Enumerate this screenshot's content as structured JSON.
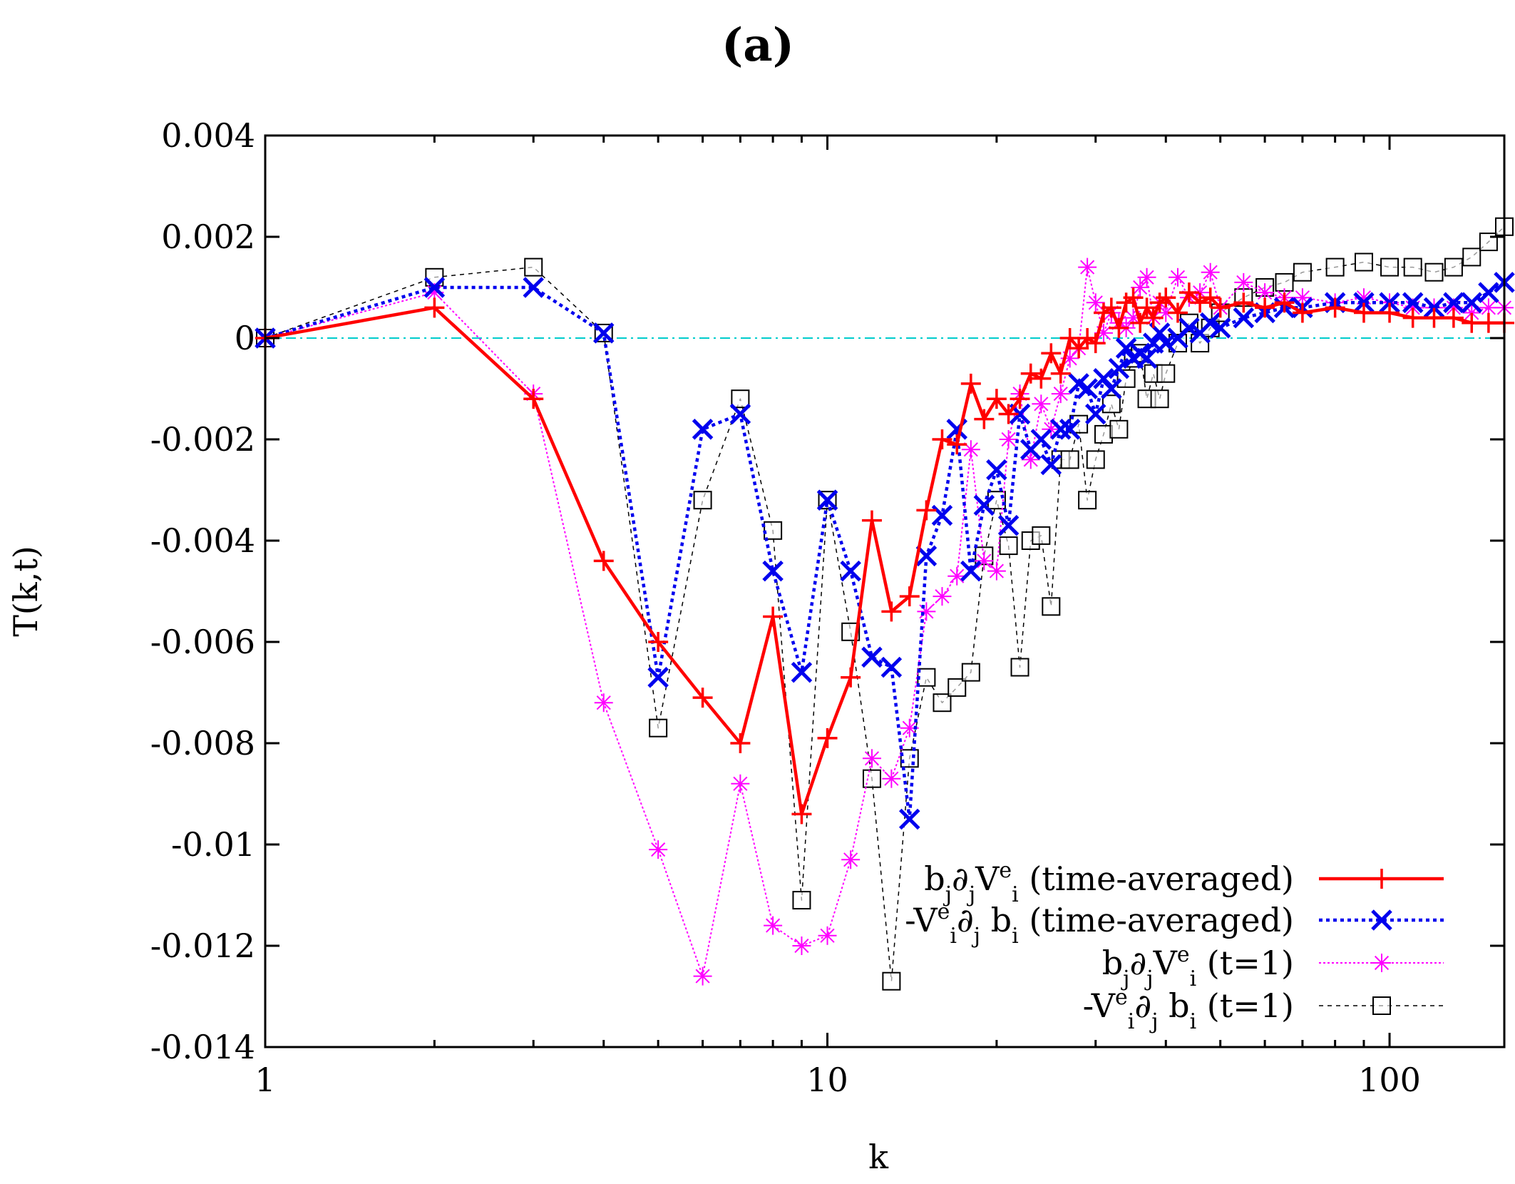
{
  "chart_data": {
    "type": "line",
    "title": "(a)",
    "xlabel": "k",
    "ylabel": "T(k,t)",
    "xscale": "log",
    "xlim": [
      1,
      160
    ],
    "ylim": [
      -0.014,
      0.004
    ],
    "x_ticks": [
      1,
      10,
      100
    ],
    "x_tick_labels": [
      "1",
      "10",
      "100"
    ],
    "y_ticks": [
      0.004,
      0.002,
      0,
      -0.002,
      -0.004,
      -0.006,
      -0.008,
      -0.01,
      -0.012,
      -0.014
    ],
    "y_tick_labels": [
      "0.004",
      "0.002",
      "0",
      "-0.002",
      "-0.004",
      "-0.006",
      "-0.008",
      "-0.01",
      "-0.012",
      "-0.014"
    ],
    "legend_position": "bottom-right",
    "zero_line": {
      "y": 0,
      "color": "#00cccc",
      "style": "dash-dot"
    },
    "series": [
      {
        "name": "b_j∂_jV^e_i (time-averaged)",
        "legend": {
          "pre": "b",
          "s1": "j",
          "mid1": "∂",
          "s2": "j",
          "mid2": "V",
          "sup": "e",
          "s3": "i",
          "post": " (time-averaged)"
        },
        "color": "#ff0000",
        "dash": "",
        "width": 4.5,
        "marker": "plus",
        "marker_size": 14,
        "x": [
          1,
          2,
          3,
          4,
          5,
          6,
          7,
          8,
          9,
          10,
          11,
          12,
          13,
          14,
          15,
          16,
          17,
          18,
          19,
          20,
          21,
          22,
          23,
          24,
          25,
          26,
          27,
          28,
          29,
          30,
          31,
          32,
          33,
          34,
          35,
          36,
          37,
          38,
          39,
          40,
          42,
          44,
          46,
          48,
          50,
          55,
          60,
          65,
          70,
          80,
          90,
          100,
          110,
          120,
          130,
          140,
          150,
          160
        ],
        "y": [
          0.0,
          0.0006,
          -0.0012,
          -0.0044,
          -0.006,
          -0.0071,
          -0.008,
          -0.0055,
          -0.0094,
          -0.0079,
          -0.0067,
          -0.0036,
          -0.0054,
          -0.0051,
          -0.0034,
          -0.002,
          -0.0021,
          -0.0009,
          -0.0016,
          -0.0012,
          -0.0015,
          -0.0012,
          -0.0007,
          -0.0008,
          -0.0003,
          -0.0007,
          -0.0,
          -0.0002,
          0.0,
          -0.0001,
          0.0005,
          0.0006,
          0.0002,
          0.0007,
          0.0008,
          0.0003,
          0.0006,
          0.0004,
          0.0007,
          0.0008,
          0.0005,
          0.0009,
          0.0007,
          0.0008,
          0.0006,
          0.0007,
          0.0006,
          0.0007,
          0.0005,
          0.0006,
          0.0005,
          0.0005,
          0.0004,
          0.0004,
          0.0004,
          0.0003,
          0.0003,
          0.0003
        ]
      },
      {
        "name": "-V^e_i∂_j b_i (time-averaged)",
        "legend": {
          "pre": "-V",
          "sup": "e",
          "s1": "i",
          "mid1": "∂",
          "s2": "j",
          "mid2": " b",
          "s3": "i",
          "post": " (time-averaged)"
        },
        "color": "#0000ee",
        "dash": "5,5",
        "width": 4.5,
        "marker": "cross",
        "marker_size": 13,
        "x": [
          1,
          2,
          3,
          4,
          5,
          6,
          7,
          8,
          9,
          10,
          11,
          12,
          13,
          14,
          15,
          16,
          17,
          18,
          19,
          20,
          21,
          22,
          23,
          24,
          25,
          26,
          27,
          28,
          29,
          30,
          31,
          32,
          33,
          34,
          35,
          36,
          37,
          38,
          39,
          40,
          42,
          44,
          46,
          48,
          50,
          55,
          60,
          65,
          70,
          80,
          90,
          100,
          110,
          120,
          130,
          140,
          150,
          160
        ],
        "y": [
          0.0,
          0.001,
          0.001,
          0.0001,
          -0.0067,
          -0.0018,
          -0.0015,
          -0.0046,
          -0.0066,
          -0.0032,
          -0.0046,
          -0.0063,
          -0.0065,
          -0.0095,
          -0.0043,
          -0.0035,
          -0.0018,
          -0.0046,
          -0.0033,
          -0.0026,
          -0.0037,
          -0.0015,
          -0.0022,
          -0.002,
          -0.0025,
          -0.0018,
          -0.0018,
          -0.0009,
          -0.001,
          -0.0015,
          -0.0008,
          -0.001,
          -0.0006,
          -0.0002,
          -0.0004,
          -0.0003,
          -0.0004,
          -0.0001,
          0.0001,
          -0.0001,
          0.0,
          0.0002,
          0.0001,
          0.0003,
          0.0002,
          0.0004,
          0.0005,
          0.0006,
          0.0006,
          0.0007,
          0.0007,
          0.0007,
          0.0007,
          0.0006,
          0.0007,
          0.0007,
          0.0009,
          0.0011
        ]
      },
      {
        "name": "b_j∂_jV^e_i (t=1)",
        "legend": {
          "pre": "b",
          "s1": "j",
          "mid1": "∂",
          "s2": "j",
          "mid2": "V",
          "sup": "e",
          "s3": "i",
          "post": "   (t=1)"
        },
        "color": "#ff00ff",
        "dash": "3,3",
        "width": 2,
        "marker": "star",
        "marker_size": 13,
        "x": [
          1,
          2,
          3,
          4,
          5,
          6,
          7,
          8,
          9,
          10,
          11,
          12,
          13,
          14,
          15,
          16,
          17,
          18,
          19,
          20,
          21,
          22,
          23,
          24,
          25,
          26,
          27,
          28,
          29,
          30,
          31,
          32,
          33,
          34,
          35,
          36,
          37,
          38,
          39,
          40,
          42,
          44,
          46,
          48,
          50,
          55,
          60,
          65,
          70,
          80,
          90,
          100,
          110,
          120,
          130,
          140,
          150,
          160
        ],
        "y": [
          0.0,
          0.0009,
          -0.0011,
          -0.0072,
          -0.0101,
          -0.0126,
          -0.0088,
          -0.0116,
          -0.012,
          -0.0118,
          -0.0103,
          -0.0083,
          -0.0087,
          -0.0077,
          -0.0054,
          -0.0051,
          -0.0047,
          -0.0022,
          -0.0044,
          -0.0046,
          -0.002,
          -0.0011,
          -0.0024,
          -0.0013,
          -0.0018,
          -0.0011,
          -0.0004,
          -0.0002,
          0.0014,
          0.0007,
          0.0001,
          0.0005,
          0.0003,
          0.0002,
          0.0004,
          0.001,
          0.0012,
          0.0004,
          0.0007,
          0.0005,
          0.0012,
          0.0008,
          0.0009,
          0.0013,
          0.0006,
          0.0011,
          0.0009,
          0.0008,
          0.0008,
          0.0007,
          0.0008,
          0.0007,
          0.0006,
          0.0006,
          0.0006,
          0.0005,
          0.0006,
          0.0006
        ]
      },
      {
        "name": "-V^e_i∂_j b_i (t=1)",
        "legend": {
          "pre": "-V",
          "sup": "e",
          "s1": "i",
          "mid1": "∂",
          "s2": "j",
          "mid2": " b",
          "s3": "i",
          "post": " (t=1)"
        },
        "color": "#000000",
        "dash": "6,6",
        "width": 1.5,
        "marker": "square",
        "marker_size": 12,
        "x": [
          1,
          2,
          3,
          4,
          5,
          6,
          7,
          8,
          9,
          10,
          11,
          12,
          13,
          14,
          15,
          16,
          17,
          18,
          19,
          20,
          21,
          22,
          23,
          24,
          25,
          26,
          27,
          28,
          29,
          30,
          31,
          32,
          33,
          34,
          35,
          36,
          37,
          38,
          39,
          40,
          42,
          44,
          46,
          48,
          50,
          55,
          60,
          65,
          70,
          80,
          90,
          100,
          110,
          120,
          130,
          140,
          150,
          160
        ],
        "y": [
          0.0,
          0.0012,
          0.0014,
          0.0001,
          -0.0077,
          -0.0032,
          -0.0012,
          -0.0038,
          -0.0111,
          -0.0032,
          -0.0058,
          -0.0087,
          -0.0127,
          -0.0083,
          -0.0067,
          -0.0072,
          -0.0069,
          -0.0066,
          -0.0043,
          -0.0032,
          -0.0041,
          -0.0065,
          -0.004,
          -0.0039,
          -0.0053,
          -0.0024,
          -0.0024,
          -0.0017,
          -0.0032,
          -0.0024,
          -0.0019,
          -0.0013,
          -0.0018,
          -0.0008,
          -0.0004,
          -0.0003,
          -0.0012,
          -0.0007,
          -0.0012,
          -0.0007,
          -0.0001,
          0.0003,
          -0.0001,
          0.0002,
          0.0005,
          0.0008,
          0.001,
          0.0011,
          0.0013,
          0.0014,
          0.0015,
          0.0014,
          0.0014,
          0.0013,
          0.0014,
          0.0016,
          0.0019,
          0.0022
        ]
      }
    ]
  }
}
